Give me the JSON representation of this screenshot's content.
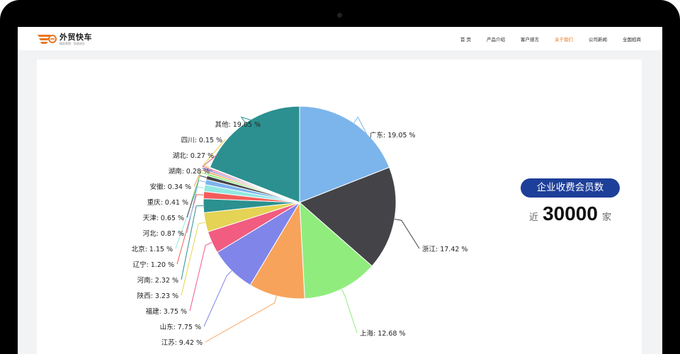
{
  "site": {
    "name": "外贸快车",
    "slogan": "精准营销 · 快速成交"
  },
  "nav": [
    {
      "label": "首 页",
      "active": false
    },
    {
      "label": "产品介绍",
      "active": false
    },
    {
      "label": "客户感言",
      "active": false
    },
    {
      "label": "关于我们",
      "active": true
    },
    {
      "label": "公司新闻",
      "active": false
    },
    {
      "label": "全国招商",
      "active": false
    }
  ],
  "colors": {
    "brand_orange": "#e87722",
    "active_nav": "#e87722",
    "badge_blue": "#1e3f99"
  },
  "stats": {
    "badge": "企业收费会员数",
    "prefix": "近",
    "value": "30000",
    "suffix": "家"
  },
  "chart_data": {
    "type": "pie",
    "title": "",
    "slices": [
      {
        "name": "广东",
        "value": 19.05,
        "label": "广东: 19.05 %",
        "color": "#7cb5ec"
      },
      {
        "name": "浙江",
        "value": 17.42,
        "label": "浙江: 17.42 %",
        "color": "#434348"
      },
      {
        "name": "上海",
        "value": 12.68,
        "label": "上海: 12.68 %",
        "color": "#90ed7d"
      },
      {
        "name": "江苏",
        "value": 9.42,
        "label": "江苏: 9.42 %",
        "color": "#f7a35c"
      },
      {
        "name": "山东",
        "value": 7.75,
        "label": "山东: 7.75 %",
        "color": "#8085e9"
      },
      {
        "name": "福建",
        "value": 3.75,
        "label": "福建: 3.75 %",
        "color": "#f15c80"
      },
      {
        "name": "陕西",
        "value": 3.23,
        "label": "陕西: 3.23 %",
        "color": "#e4d354"
      },
      {
        "name": "河南",
        "value": 2.32,
        "label": "河南: 2.32 %",
        "color": "#2b908f"
      },
      {
        "name": "辽宁",
        "value": 1.2,
        "label": "辽宁: 1.20 %",
        "color": "#f45b5b"
      },
      {
        "name": "北京",
        "value": 1.15,
        "label": "北京: 1.15 %",
        "color": "#91e8e1"
      },
      {
        "name": "河北",
        "value": 0.87,
        "label": "河北: 0.87 %",
        "color": "#7cb5ec"
      },
      {
        "name": "天津",
        "value": 0.65,
        "label": "天津: 0.65 %",
        "color": "#434348"
      },
      {
        "name": "重庆",
        "value": 0.41,
        "label": "重庆: 0.41 %",
        "color": "#90ed7d"
      },
      {
        "name": "安徽",
        "value": 0.34,
        "label": "安徽: 0.34 %",
        "color": "#f7a35c"
      },
      {
        "name": "湖南",
        "value": 0.28,
        "label": "湖南: 0.28 %",
        "color": "#8085e9"
      },
      {
        "name": "湖北",
        "value": 0.27,
        "label": "湖北: 0.27 %",
        "color": "#f15c80"
      },
      {
        "name": "四川",
        "value": 0.15,
        "label": "四川: 0.15 %",
        "color": "#e4d354"
      },
      {
        "name": "其他",
        "value": 19.05,
        "label": "其他: 19.05 %",
        "color": "#2b908f"
      }
    ]
  }
}
